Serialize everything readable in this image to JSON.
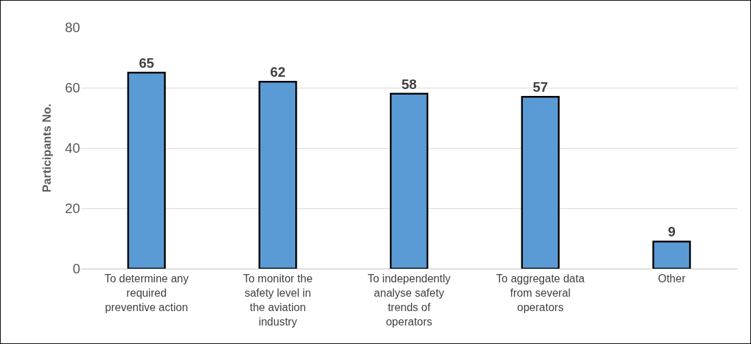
{
  "chart_data": {
    "type": "bar",
    "ylabel": "Participants No.",
    "categories": [
      "To determine any required preventive action",
      "To monitor the safety level in the aviation industry",
      "To independently analyse safety trends of operators",
      "To aggregate data from several operators",
      "Other"
    ],
    "values": [
      65,
      62,
      58,
      57,
      9
    ],
    "color": "#5b9bd5",
    "ylim": [
      0,
      80
    ],
    "yticks": [
      0,
      20,
      40,
      60,
      80
    ],
    "grid": "y",
    "data_labels": true
  }
}
